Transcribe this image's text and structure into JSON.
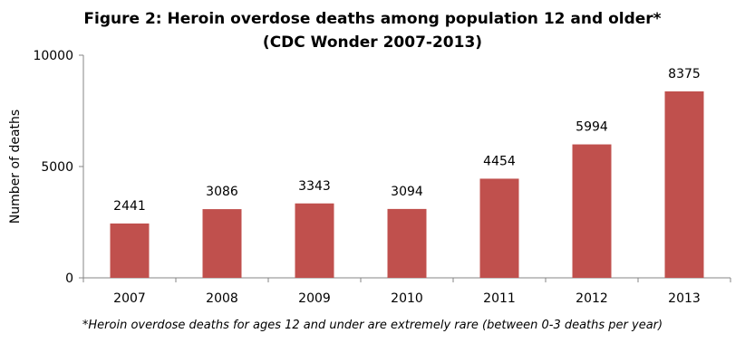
{
  "chart_data": {
    "type": "bar",
    "title_line1": "Figure 2: Heroin overdose deaths among population 12 and older*",
    "title_line2": "(CDC Wonder 2007-2013)",
    "xlabel": "",
    "ylabel": "Number of deaths",
    "categories": [
      "2007",
      "2008",
      "2009",
      "2010",
      "2011",
      "2012",
      "2013"
    ],
    "values": [
      2441,
      3086,
      3343,
      3094,
      4454,
      5994,
      8375
    ],
    "ylim": [
      0,
      10000
    ],
    "yticks": [
      0,
      5000,
      10000
    ],
    "grid": false,
    "bar_color": "#C0504D",
    "footnote": "*Heroin overdose deaths for ages 12 and under are extremely rare (between 0-3 deaths per year)"
  }
}
